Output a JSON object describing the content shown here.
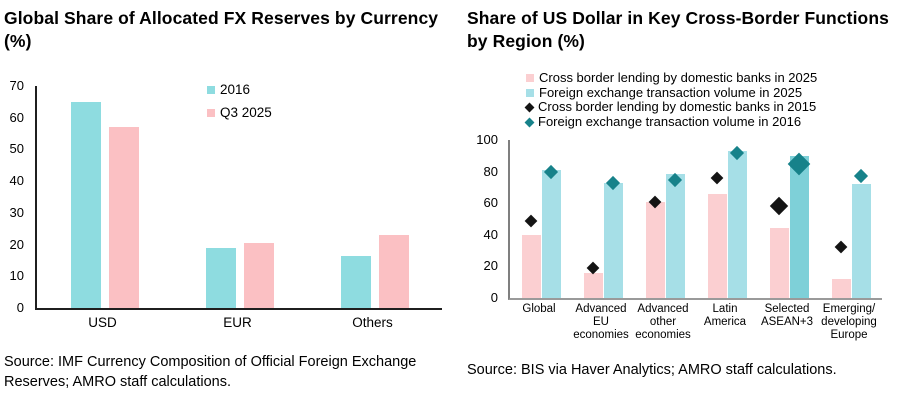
{
  "chart_data": [
    {
      "type": "bar",
      "title": "Global Share of Allocated FX Reserves by Currency (%)",
      "categories": [
        "USD",
        "EUR",
        "Others"
      ],
      "series": [
        {
          "name": "2016",
          "type": "bar",
          "color": "#8edce0",
          "values": [
            65,
            19,
            16.5
          ]
        },
        {
          "name": "Q3 2025",
          "type": "bar",
          "color": "#fbc0c3",
          "values": [
            57,
            20.5,
            23
          ]
        }
      ],
      "xlabel": "",
      "ylabel": "",
      "ylim": [
        0,
        70
      ],
      "yticks": [
        0,
        10,
        20,
        30,
        40,
        50,
        60,
        70
      ],
      "grid": false,
      "legend_position": "inside-top-center",
      "source": "Source: IMF Currency Composition of Official Foreign Exchange Reserves; AMRO staff calculations."
    },
    {
      "type": "bar",
      "title": "Share of US Dollar in Key Cross-Border Functions by Region (%)",
      "categories": [
        "Global",
        "Advanced EU economies",
        "Advanced other economies",
        "Latin America",
        "Selected ASEAN+3",
        "Emerging/ developing Europe"
      ],
      "series": [
        {
          "name": "Cross border lending by domestic banks in 2025",
          "type": "bar",
          "color": "#fbcfd1",
          "values": [
            40,
            16,
            61,
            66,
            44.5,
            12
          ]
        },
        {
          "name": "Foreign exchange transaction volume in 2025",
          "type": "bar",
          "color": "#a6dfe7",
          "highlight_color": "#7ed0d8",
          "values": [
            81,
            73,
            78.5,
            93,
            90,
            72
          ]
        },
        {
          "name": "Cross border lending by domestic banks in 2015",
          "type": "diamond",
          "color": "#141414",
          "values": [
            49,
            19,
            61,
            76,
            58.5,
            32.5
          ]
        },
        {
          "name": "Foreign exchange transaction volume in 2016",
          "type": "diamond",
          "color": "#17828a",
          "values": [
            80,
            72.5,
            74.5,
            91.5,
            85,
            77
          ]
        }
      ],
      "xlabel": "",
      "ylabel": "",
      "ylim": [
        0,
        100
      ],
      "yticks": [
        0,
        20,
        40,
        60,
        80,
        100
      ],
      "grid": false,
      "legend_position": "above-plot",
      "highlight_category": "Selected ASEAN+3",
      "source": "Source: BIS via Haver Analytics; AMRO staff calculations."
    }
  ]
}
